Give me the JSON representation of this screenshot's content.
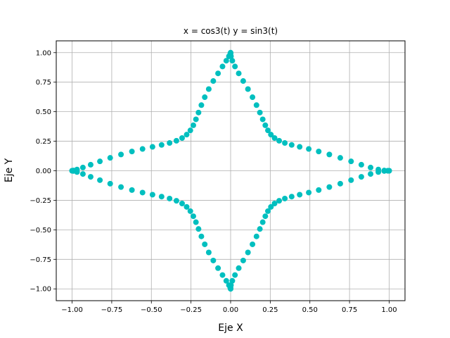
{
  "chart_data": {
    "type": "scatter",
    "title": "x = cos3(t) y = sin3(t)",
    "xlabel": "Eje X",
    "ylabel": "Eje Y",
    "xlim": [
      -1.1,
      1.1
    ],
    "ylim": [
      -1.1,
      1.1
    ],
    "xticks": [
      -1.0,
      -0.75,
      -0.5,
      -0.25,
      0.0,
      0.25,
      0.5,
      0.75,
      1.0
    ],
    "yticks": [
      -1.0,
      -0.75,
      -0.5,
      -0.25,
      0.0,
      0.25,
      0.5,
      0.75,
      1.0
    ],
    "xtick_labels": [
      "−1.00",
      "−0.75",
      "−0.50",
      "−0.25",
      "0.00",
      "0.25",
      "0.50",
      "0.75",
      "1.00"
    ],
    "ytick_labels": [
      "−1.00",
      "−0.75",
      "−0.50",
      "−0.25",
      "0.00",
      "0.25",
      "0.50",
      "0.75",
      "1.00"
    ],
    "grid": true,
    "marker_color": "#00bfbf",
    "series": [
      {
        "x": [
          1.0,
          0.9921,
          0.969,
          0.9319,
          0.8829,
          0.8246,
          0.7598,
          0.6916,
          0.6227,
          0.5557,
          0.4928,
          0.4355,
          0.3851,
          0.3419,
          0.3062,
          0.2772,
          0.2541,
          0.2352,
          0.2188,
          0.2025,
          0.1845,
          0.1632,
          0.1379,
          0.1093,
          0.0794,
          0.0512,
          0.0274,
          0.0107,
          0.0021,
          0.0,
          0.0,
          -0.0021,
          -0.0107,
          -0.0274,
          -0.0512,
          -0.0794,
          -0.1093,
          -0.1379,
          -0.1632,
          -0.1845,
          -0.2025,
          -0.2188,
          -0.2352,
          -0.2541,
          -0.2772,
          -0.3062,
          -0.3419,
          -0.3851,
          -0.4355,
          -0.4928,
          -0.5557,
          -0.6227,
          -0.6916,
          -0.7598,
          -0.8246,
          -0.8829,
          -0.9319,
          -0.969,
          -0.9921,
          -1.0,
          -1.0,
          -0.9921,
          -0.969,
          -0.9319,
          -0.8829,
          -0.8246,
          -0.7598,
          -0.6916,
          -0.6227,
          -0.5557,
          -0.4928,
          -0.4355,
          -0.3851,
          -0.3419,
          -0.3062,
          -0.2772,
          -0.2541,
          -0.2352,
          -0.2188,
          -0.2025,
          -0.1845,
          -0.1632,
          -0.1379,
          -0.1093,
          -0.0794,
          -0.0512,
          -0.0274,
          -0.0107,
          -0.0021,
          0.0,
          0.0,
          0.0021,
          0.0107,
          0.0274,
          0.0512,
          0.0794,
          0.1093,
          0.1379,
          0.1632,
          0.1845,
          0.2025,
          0.2188,
          0.2352,
          0.2541,
          0.2772,
          0.3062,
          0.3419,
          0.3851,
          0.4355,
          0.4928,
          0.5557,
          0.6227,
          0.6916,
          0.7598,
          0.8246,
          0.8829,
          0.9319,
          0.969,
          0.9921,
          1.0
        ],
        "y": [
          0.0,
          0.0,
          0.0021,
          0.0107,
          0.0274,
          0.0512,
          0.0794,
          0.1093,
          0.1379,
          0.1632,
          0.1845,
          0.2025,
          0.2188,
          0.2352,
          0.2541,
          0.2772,
          0.3062,
          0.3419,
          0.3851,
          0.4355,
          0.4928,
          0.5557,
          0.6227,
          0.6916,
          0.7598,
          0.8246,
          0.8829,
          0.9319,
          0.969,
          0.9921,
          1.0,
          0.9921,
          0.969,
          0.9319,
          0.8829,
          0.8246,
          0.7598,
          0.6916,
          0.6227,
          0.5557,
          0.4928,
          0.4355,
          0.3851,
          0.3419,
          0.3062,
          0.2772,
          0.2541,
          0.2352,
          0.2188,
          0.2025,
          0.1845,
          0.1632,
          0.1379,
          0.1093,
          0.0794,
          0.0512,
          0.0274,
          0.0107,
          0.0021,
          0.0,
          -0.0,
          -0.0021,
          -0.0107,
          -0.0274,
          -0.0512,
          -0.0794,
          -0.1093,
          -0.1379,
          -0.1632,
          -0.1845,
          -0.2025,
          -0.2188,
          -0.2352,
          -0.2541,
          -0.2772,
          -0.3062,
          -0.3419,
          -0.3851,
          -0.4355,
          -0.4928,
          -0.5557,
          -0.6227,
          -0.6916,
          -0.7598,
          -0.8246,
          -0.8829,
          -0.9319,
          -0.969,
          -0.9921,
          -1.0,
          -0.9921,
          -0.969,
          -0.9319,
          -0.8829,
          -0.8246,
          -0.7598,
          -0.6916,
          -0.6227,
          -0.5557,
          -0.4928,
          -0.4355,
          -0.3851,
          -0.3419,
          -0.3062,
          -0.2772,
          -0.2541,
          -0.2352,
          -0.2188,
          -0.2025,
          -0.1845,
          -0.1632,
          -0.1379,
          -0.1093,
          -0.0794,
          -0.0512,
          -0.0274,
          -0.0107,
          -0.0021,
          -0.0,
          -0.0
        ]
      }
    ]
  }
}
